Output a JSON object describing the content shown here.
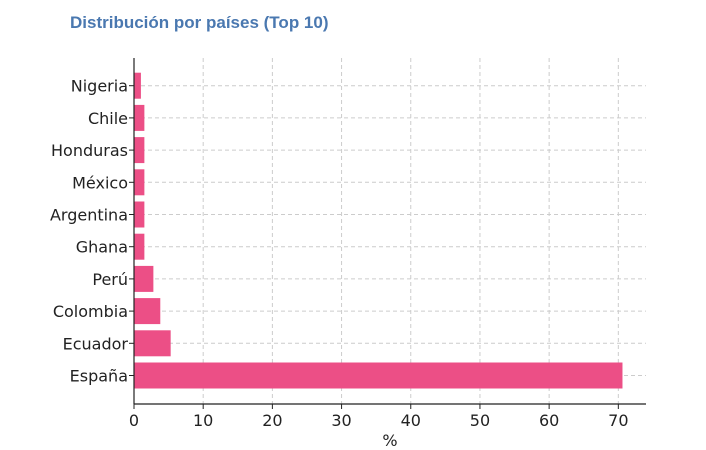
{
  "chart_data": {
    "type": "bar",
    "orientation": "horizontal",
    "title": "Distribución por países (Top 10)",
    "xlabel": "%",
    "ylabel": "",
    "categories": [
      "España",
      "Ecuador",
      "Colombia",
      "Perú",
      "Ghana",
      "Argentina",
      "México",
      "Honduras",
      "Chile",
      "Nigeria"
    ],
    "values": [
      70.6,
      5.3,
      3.8,
      2.8,
      1.5,
      1.5,
      1.5,
      1.5,
      1.5,
      1.0
    ],
    "xlim": [
      0,
      74
    ],
    "xticks": [
      0,
      10,
      20,
      30,
      40,
      50,
      60,
      70
    ],
    "grid": true,
    "bar_color": "#ec4f86"
  }
}
